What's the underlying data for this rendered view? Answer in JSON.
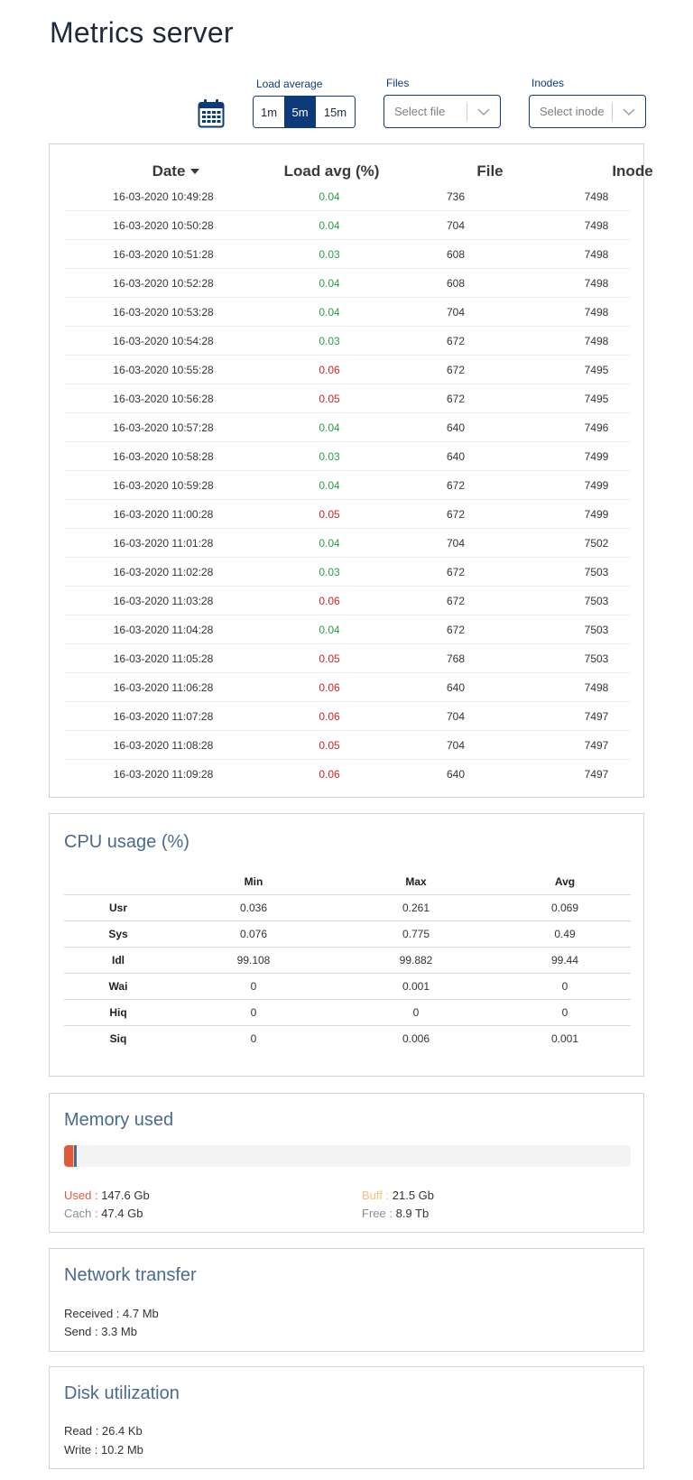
{
  "page": {
    "title": "Metrics server"
  },
  "controls": {
    "calendar_icon": "calendar-icon",
    "load_average": {
      "label": "Load average",
      "options": [
        "1m",
        "5m",
        "15m"
      ],
      "selected": "5m"
    },
    "files": {
      "label": "Files",
      "placeholder": "Select file"
    },
    "inodes": {
      "label": "Inodes",
      "placeholder": "Select inode"
    }
  },
  "load_table": {
    "headers": {
      "date": "Date",
      "load": "Load avg (%)",
      "file": "File",
      "inode": "Inode"
    },
    "sort_icon": "caret-down-icon",
    "rows": [
      {
        "date": "16-03-2020 10:49:28",
        "load": "0.04",
        "status": "ok",
        "file": "736",
        "inode": "7498"
      },
      {
        "date": "16-03-2020 10:50:28",
        "load": "0.04",
        "status": "ok",
        "file": "704",
        "inode": "7498"
      },
      {
        "date": "16-03-2020 10:51:28",
        "load": "0.03",
        "status": "ok",
        "file": "608",
        "inode": "7498"
      },
      {
        "date": "16-03-2020 10:52:28",
        "load": "0.04",
        "status": "ok",
        "file": "608",
        "inode": "7498"
      },
      {
        "date": "16-03-2020 10:53:28",
        "load": "0.04",
        "status": "ok",
        "file": "704",
        "inode": "7498"
      },
      {
        "date": "16-03-2020 10:54:28",
        "load": "0.03",
        "status": "ok",
        "file": "672",
        "inode": "7498"
      },
      {
        "date": "16-03-2020 10:55:28",
        "load": "0.06",
        "status": "bad",
        "file": "672",
        "inode": "7495"
      },
      {
        "date": "16-03-2020 10:56:28",
        "load": "0.05",
        "status": "bad",
        "file": "672",
        "inode": "7495"
      },
      {
        "date": "16-03-2020 10:57:28",
        "load": "0.04",
        "status": "ok",
        "file": "640",
        "inode": "7496"
      },
      {
        "date": "16-03-2020 10:58:28",
        "load": "0.03",
        "status": "ok",
        "file": "640",
        "inode": "7499"
      },
      {
        "date": "16-03-2020 10:59:28",
        "load": "0.04",
        "status": "ok",
        "file": "672",
        "inode": "7499"
      },
      {
        "date": "16-03-2020 11:00:28",
        "load": "0.05",
        "status": "bad",
        "file": "672",
        "inode": "7499"
      },
      {
        "date": "16-03-2020 11:01:28",
        "load": "0.04",
        "status": "ok",
        "file": "704",
        "inode": "7502"
      },
      {
        "date": "16-03-2020 11:02:28",
        "load": "0.03",
        "status": "ok",
        "file": "672",
        "inode": "7503"
      },
      {
        "date": "16-03-2020 11:03:28",
        "load": "0.06",
        "status": "bad",
        "file": "672",
        "inode": "7503"
      },
      {
        "date": "16-03-2020 11:04:28",
        "load": "0.04",
        "status": "ok",
        "file": "672",
        "inode": "7503"
      },
      {
        "date": "16-03-2020 11:05:28",
        "load": "0.05",
        "status": "bad",
        "file": "768",
        "inode": "7503"
      },
      {
        "date": "16-03-2020 11:06:28",
        "load": "0.06",
        "status": "bad",
        "file": "640",
        "inode": "7498"
      },
      {
        "date": "16-03-2020 11:07:28",
        "load": "0.06",
        "status": "bad",
        "file": "704",
        "inode": "7497"
      },
      {
        "date": "16-03-2020 11:08:28",
        "load": "0.05",
        "status": "bad",
        "file": "704",
        "inode": "7497"
      },
      {
        "date": "16-03-2020 11:09:28",
        "load": "0.06",
        "status": "bad",
        "file": "640",
        "inode": "7497"
      }
    ]
  },
  "cpu": {
    "title": "CPU usage (%)",
    "headers": [
      "",
      "Min",
      "Max",
      "Avg"
    ],
    "rows": [
      {
        "name": "Usr",
        "min": "0.036",
        "max": "0.261",
        "avg": "0.069"
      },
      {
        "name": "Sys",
        "min": "0.076",
        "max": "0.775",
        "avg": "0.49"
      },
      {
        "name": "Idl",
        "min": "99.108",
        "max": "99.882",
        "avg": "99.44"
      },
      {
        "name": "Wai",
        "min": "0",
        "max": "0.001",
        "avg": "0"
      },
      {
        "name": "Hiq",
        "min": "0",
        "max": "0",
        "avg": "0"
      },
      {
        "name": "Siq",
        "min": "0",
        "max": "0.006",
        "avg": "0.001"
      }
    ]
  },
  "memory": {
    "title": "Memory used",
    "bar": {
      "used_fraction": 0.016,
      "buff_fraction": 0.002,
      "cach_fraction": 0.005
    },
    "used": {
      "label": "Used :",
      "value": "147.6 Gb",
      "color": "#e25a3c"
    },
    "buff": {
      "label": "Buff :",
      "value": "21.5 Gb",
      "color": "#f4c27a"
    },
    "cach": {
      "label": "Cach :",
      "value": "47.4 Gb",
      "color": "#4a6b8f"
    },
    "free": {
      "label": "Free :",
      "value": "8.9 Tb"
    }
  },
  "network": {
    "title": "Network transfer",
    "received": "Received : 4.7 Mb",
    "send": "Send : 3.3 Mb"
  },
  "disk": {
    "title": "Disk utilization",
    "read": "Read : 26.4 Kb",
    "write": "Write : 10.2 Mb"
  },
  "colors": {
    "accent": "#0d3b7a",
    "ok": "#2e9a48",
    "bad": "#c62828",
    "panel_title": "#4a6b8f"
  }
}
